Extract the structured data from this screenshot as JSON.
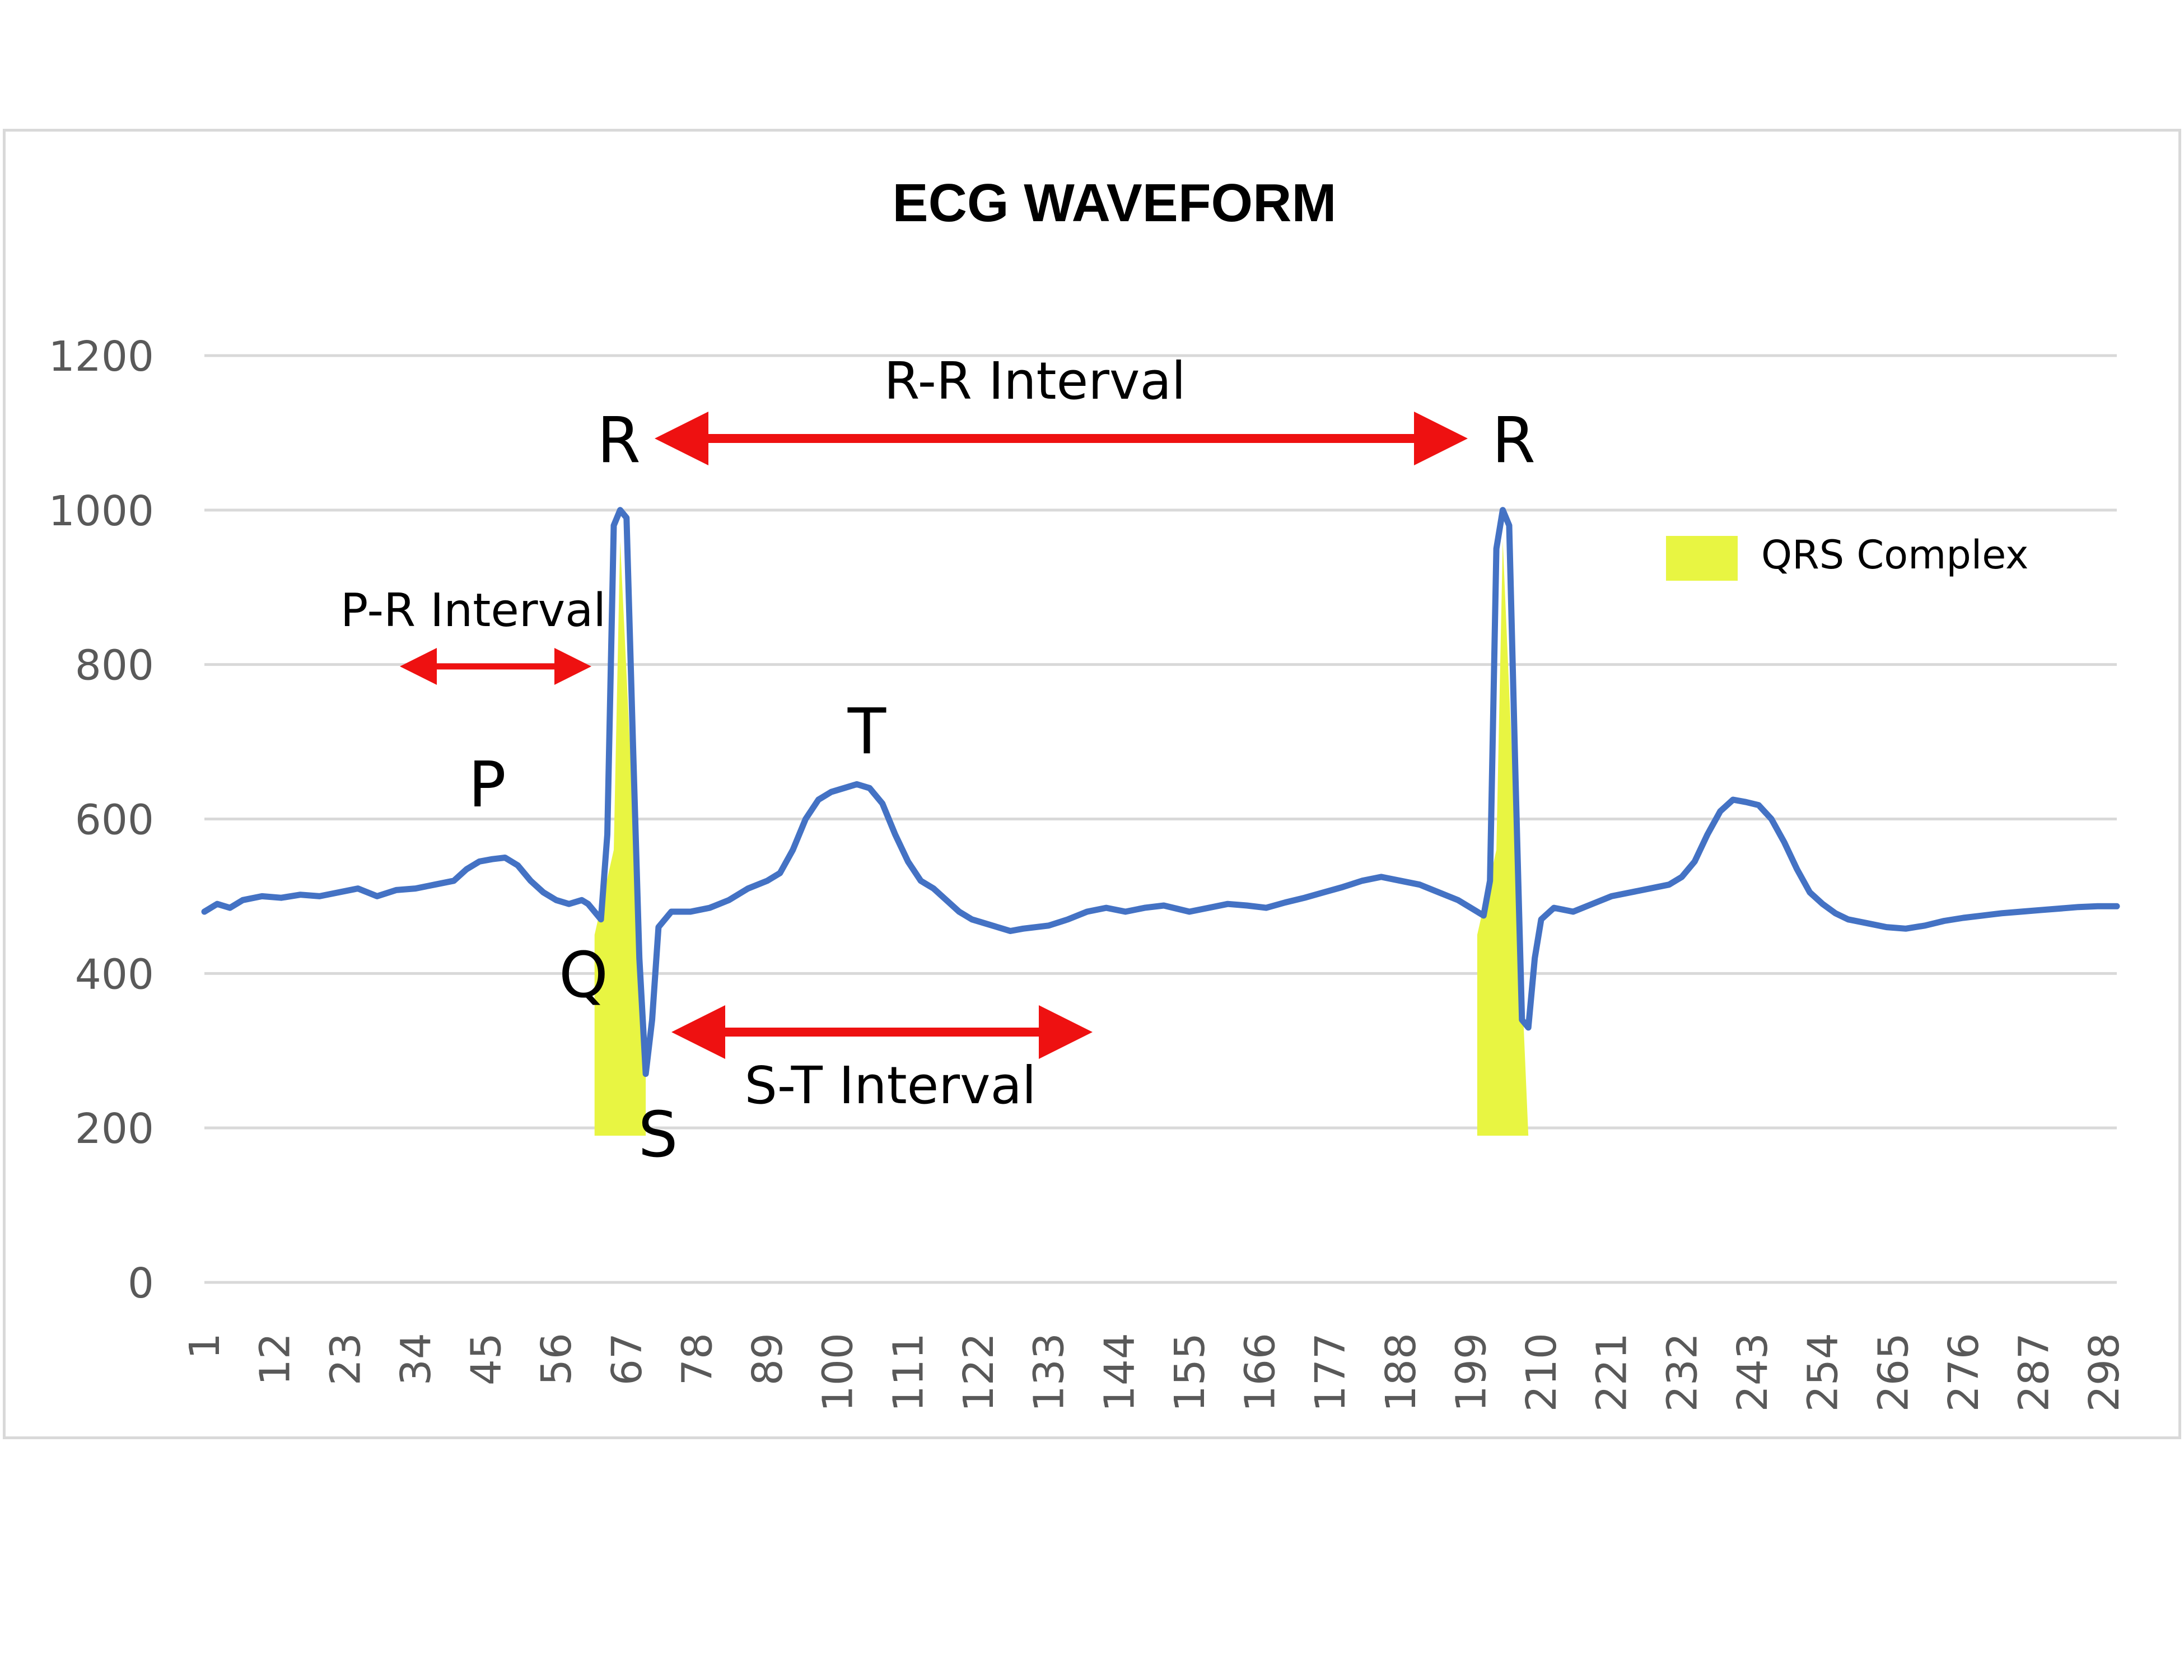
{
  "chart_data": {
    "type": "line",
    "title": "ECG WAVEFORM",
    "xlabel": "",
    "ylabel": "",
    "ylim": [
      0,
      1200
    ],
    "yticks": [
      0,
      200,
      400,
      600,
      800,
      1000,
      1200
    ],
    "xlim": [
      1,
      300
    ],
    "xticks": [
      1,
      12,
      23,
      34,
      45,
      56,
      67,
      78,
      89,
      100,
      111,
      122,
      133,
      144,
      155,
      166,
      177,
      188,
      199,
      210,
      221,
      232,
      243,
      254,
      265,
      276,
      287,
      298
    ],
    "grid": true,
    "series": [
      {
        "color": "#4472c4",
        "points": [
          [
            1,
            480
          ],
          [
            3,
            490
          ],
          [
            5,
            485
          ],
          [
            7,
            495
          ],
          [
            10,
            500
          ],
          [
            13,
            498
          ],
          [
            16,
            502
          ],
          [
            19,
            500
          ],
          [
            22,
            505
          ],
          [
            25,
            510
          ],
          [
            28,
            500
          ],
          [
            31,
            508
          ],
          [
            34,
            510
          ],
          [
            37,
            515
          ],
          [
            40,
            520
          ],
          [
            42,
            535
          ],
          [
            44,
            545
          ],
          [
            46,
            548
          ],
          [
            48,
            550
          ],
          [
            50,
            540
          ],
          [
            52,
            520
          ],
          [
            54,
            505
          ],
          [
            56,
            495
          ],
          [
            58,
            490
          ],
          [
            60,
            495
          ],
          [
            61,
            490
          ],
          [
            62,
            480
          ],
          [
            63,
            470
          ],
          [
            64,
            580
          ],
          [
            65,
            980
          ],
          [
            66,
            1000
          ],
          [
            67,
            990
          ],
          [
            68,
            700
          ],
          [
            69,
            420
          ],
          [
            70,
            270
          ],
          [
            71,
            340
          ],
          [
            72,
            460
          ],
          [
            74,
            480
          ],
          [
            77,
            480
          ],
          [
            80,
            485
          ],
          [
            83,
            495
          ],
          [
            86,
            510
          ],
          [
            89,
            520
          ],
          [
            91,
            530
          ],
          [
            93,
            560
          ],
          [
            95,
            600
          ],
          [
            97,
            625
          ],
          [
            99,
            635
          ],
          [
            101,
            640
          ],
          [
            103,
            645
          ],
          [
            105,
            640
          ],
          [
            107,
            620
          ],
          [
            109,
            580
          ],
          [
            111,
            545
          ],
          [
            113,
            520
          ],
          [
            115,
            510
          ],
          [
            117,
            495
          ],
          [
            119,
            480
          ],
          [
            121,
            470
          ],
          [
            123,
            465
          ],
          [
            125,
            460
          ],
          [
            127,
            455
          ],
          [
            129,
            458
          ],
          [
            131,
            460
          ],
          [
            133,
            462
          ],
          [
            136,
            470
          ],
          [
            139,
            480
          ],
          [
            142,
            485
          ],
          [
            145,
            480
          ],
          [
            148,
            485
          ],
          [
            151,
            488
          ],
          [
            155,
            480
          ],
          [
            158,
            485
          ],
          [
            161,
            490
          ],
          [
            164,
            488
          ],
          [
            167,
            485
          ],
          [
            170,
            492
          ],
          [
            173,
            498
          ],
          [
            176,
            505
          ],
          [
            179,
            512
          ],
          [
            182,
            520
          ],
          [
            185,
            525
          ],
          [
            188,
            520
          ],
          [
            191,
            515
          ],
          [
            194,
            505
          ],
          [
            197,
            495
          ],
          [
            199,
            485
          ],
          [
            201,
            475
          ],
          [
            202,
            520
          ],
          [
            203,
            950
          ],
          [
            204,
            1000
          ],
          [
            205,
            980
          ],
          [
            206,
            650
          ],
          [
            207,
            340
          ],
          [
            208,
            330
          ],
          [
            209,
            420
          ],
          [
            210,
            470
          ],
          [
            212,
            485
          ],
          [
            215,
            480
          ],
          [
            218,
            490
          ],
          [
            221,
            500
          ],
          [
            224,
            505
          ],
          [
            227,
            510
          ],
          [
            230,
            515
          ],
          [
            232,
            525
          ],
          [
            234,
            545
          ],
          [
            236,
            580
          ],
          [
            238,
            610
          ],
          [
            240,
            625
          ],
          [
            242,
            622
          ],
          [
            244,
            618
          ],
          [
            246,
            600
          ],
          [
            248,
            570
          ],
          [
            250,
            535
          ],
          [
            252,
            505
          ],
          [
            254,
            490
          ],
          [
            256,
            478
          ],
          [
            258,
            470
          ],
          [
            261,
            465
          ],
          [
            264,
            460
          ],
          [
            267,
            458
          ],
          [
            270,
            462
          ],
          [
            273,
            468
          ],
          [
            276,
            472
          ],
          [
            279,
            475
          ],
          [
            282,
            478
          ],
          [
            285,
            480
          ],
          [
            288,
            482
          ],
          [
            291,
            484
          ],
          [
            294,
            486
          ],
          [
            297,
            487
          ],
          [
            300,
            487
          ]
        ]
      }
    ],
    "annotations": {
      "peak_r_1": "R",
      "peak_r_2": "R",
      "q": "Q",
      "s": "S",
      "p": "P",
      "t": "T",
      "rr_interval": "R-R Interval",
      "pr_interval": "P-R Interval",
      "st_interval": "S-T Interval"
    },
    "legend": {
      "label": "QRS Complex",
      "color": "#e8f542",
      "position": "top-right"
    },
    "arrow_color": "#ee1111"
  }
}
